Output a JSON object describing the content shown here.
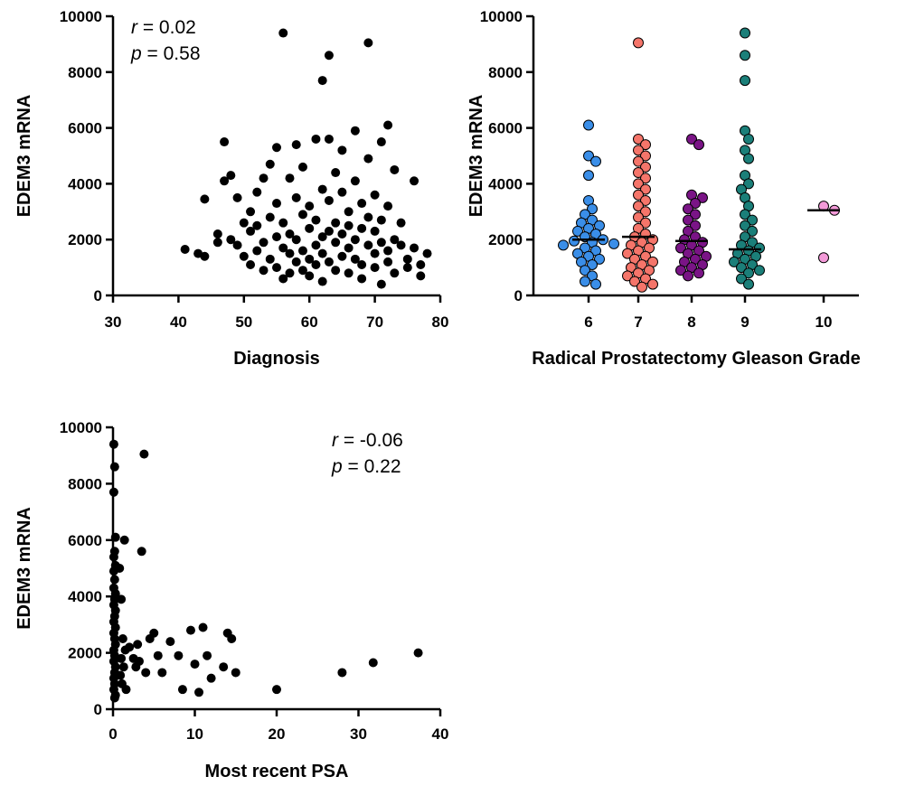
{
  "chart_data": [
    {
      "type": "scatter",
      "xlabel": "Diagnosis",
      "ylabel": "EDEM3 mRNA",
      "xlim": [
        30,
        80
      ],
      "ylim": [
        0,
        10000
      ],
      "xticks": [
        "30",
        "40",
        "50",
        "60",
        "70",
        "80"
      ],
      "yticks": [
        "0",
        "2000",
        "4000",
        "6000",
        "8000",
        "10000"
      ],
      "stats": {
        "r_symbol": "r",
        "r_text": " = 0.02",
        "p_symbol": "p",
        "p_text": " = 0.58"
      },
      "stats_position": "top-left",
      "point_color": "#000000",
      "points": [
        [
          41,
          1650
        ],
        [
          43,
          1500
        ],
        [
          44,
          1400
        ],
        [
          44,
          3450
        ],
        [
          46,
          2200
        ],
        [
          46,
          1900
        ],
        [
          47,
          5500
        ],
        [
          47,
          4100
        ],
        [
          48,
          4300
        ],
        [
          48,
          2000
        ],
        [
          49,
          1800
        ],
        [
          49,
          3500
        ],
        [
          50,
          2600
        ],
        [
          50,
          1400
        ],
        [
          51,
          2300
        ],
        [
          51,
          3000
        ],
        [
          51,
          1100
        ],
        [
          52,
          2500
        ],
        [
          52,
          1600
        ],
        [
          52,
          3700
        ],
        [
          53,
          1900
        ],
        [
          53,
          900
        ],
        [
          53,
          4200
        ],
        [
          54,
          1300
        ],
        [
          54,
          2800
        ],
        [
          54,
          4700
        ],
        [
          55,
          2100
        ],
        [
          55,
          1000
        ],
        [
          55,
          3300
        ],
        [
          55,
          5300
        ],
        [
          56,
          9400
        ],
        [
          56,
          1700
        ],
        [
          56,
          2600
        ],
        [
          56,
          600
        ],
        [
          57,
          1500
        ],
        [
          57,
          2200
        ],
        [
          57,
          4200
        ],
        [
          57,
          800
        ],
        [
          58,
          2000
        ],
        [
          58,
          1200
        ],
        [
          58,
          3500
        ],
        [
          58,
          5400
        ],
        [
          59,
          1600
        ],
        [
          59,
          2900
        ],
        [
          59,
          900
        ],
        [
          59,
          4600
        ],
        [
          60,
          2400
        ],
        [
          60,
          1300
        ],
        [
          60,
          3200
        ],
        [
          60,
          700
        ],
        [
          61,
          1800
        ],
        [
          61,
          2700
        ],
        [
          61,
          5600
        ],
        [
          61,
          1100
        ],
        [
          62,
          7700
        ],
        [
          62,
          2100
        ],
        [
          62,
          3800
        ],
        [
          62,
          500
        ],
        [
          62,
          1500
        ],
        [
          63,
          8600
        ],
        [
          63,
          2300
        ],
        [
          63,
          1200
        ],
        [
          63,
          3400
        ],
        [
          63,
          5600
        ],
        [
          64,
          1900
        ],
        [
          64,
          2600
        ],
        [
          64,
          900
        ],
        [
          64,
          4400
        ],
        [
          65,
          1400
        ],
        [
          65,
          2200
        ],
        [
          65,
          3700
        ],
        [
          65,
          5200
        ],
        [
          66,
          1700
        ],
        [
          66,
          3000
        ],
        [
          66,
          800
        ],
        [
          66,
          2500
        ],
        [
          67,
          1300
        ],
        [
          67,
          4100
        ],
        [
          67,
          2000
        ],
        [
          67,
          5900
        ],
        [
          68,
          2400
        ],
        [
          68,
          1100
        ],
        [
          68,
          3300
        ],
        [
          68,
          600
        ],
        [
          69,
          9050
        ],
        [
          69,
          1800
        ],
        [
          69,
          2800
        ],
        [
          69,
          4900
        ],
        [
          70,
          1500
        ],
        [
          70,
          2300
        ],
        [
          70,
          1000
        ],
        [
          70,
          3600
        ],
        [
          71,
          5500
        ],
        [
          71,
          1900
        ],
        [
          71,
          2700
        ],
        [
          71,
          400
        ],
        [
          72,
          6100
        ],
        [
          72,
          1600
        ],
        [
          72,
          3200
        ],
        [
          72,
          1200
        ],
        [
          73,
          4500
        ],
        [
          73,
          2000
        ],
        [
          73,
          800
        ],
        [
          74,
          1800
        ],
        [
          74,
          2600
        ],
        [
          75,
          1300
        ],
        [
          75,
          1000
        ],
        [
          76,
          4100
        ],
        [
          76,
          1700
        ],
        [
          77,
          1100
        ],
        [
          77,
          700
        ],
        [
          78,
          1500
        ]
      ]
    },
    {
      "type": "scatter",
      "subtype": "categorical-dot-plot",
      "xlabel": "Radical Prostatectomy Gleason Grade",
      "ylabel": "EDEM3 mRNA",
      "categories": [
        "6",
        "7",
        "8",
        "9",
        "10"
      ],
      "ylim": [
        0,
        10000
      ],
      "yticks": [
        "0",
        "2000",
        "4000",
        "6000",
        "8000",
        "10000"
      ],
      "series": [
        {
          "color": "#3a8ee8",
          "median": 2000,
          "values": [
            6100,
            5000,
            4800,
            4300,
            3400,
            3100,
            2900,
            2700,
            2600,
            2500,
            2400,
            2300,
            2200,
            2100,
            2000,
            1950,
            1900,
            1850,
            1800,
            1700,
            1600,
            1500,
            1400,
            1300,
            1200,
            1100,
            900,
            700,
            500,
            400
          ]
        },
        {
          "color": "#f5756a",
          "median": 2100,
          "values": [
            9050,
            5600,
            5400,
            5200,
            5000,
            4800,
            4600,
            4400,
            4200,
            4000,
            3800,
            3600,
            3400,
            3200,
            3000,
            2800,
            2600,
            2400,
            2200,
            2100,
            2000,
            1900,
            1800,
            1700,
            1600,
            1500,
            1400,
            1300,
            1200,
            1100,
            1000,
            900,
            800,
            700,
            600,
            500,
            400,
            300
          ]
        },
        {
          "color": "#7a1486",
          "median": 1950,
          "values": [
            5600,
            5400,
            3600,
            3500,
            3300,
            3100,
            2900,
            2700,
            2500,
            2300,
            2100,
            2000,
            1900,
            1800,
            1700,
            1600,
            1500,
            1400,
            1300,
            1200,
            1100,
            1000,
            900,
            800,
            700
          ]
        },
        {
          "color": "#1b7f79",
          "median": 1650,
          "values": [
            9400,
            8600,
            7700,
            5900,
            5600,
            5200,
            4900,
            4300,
            4000,
            3800,
            3500,
            3200,
            2900,
            2700,
            2500,
            2300,
            2100,
            1900,
            1800,
            1700,
            1600,
            1500,
            1400,
            1300,
            1200,
            1100,
            1000,
            900,
            800,
            600,
            400
          ]
        },
        {
          "color": "#f39ad8",
          "median": 3050,
          "values": [
            3200,
            3050,
            1350
          ]
        }
      ]
    },
    {
      "type": "scatter",
      "xlabel": "Most recent PSA",
      "ylabel": "EDEM3 mRNA",
      "xlim": [
        0,
        40
      ],
      "ylim": [
        0,
        10000
      ],
      "xticks": [
        "0",
        "10",
        "20",
        "30",
        "40"
      ],
      "yticks": [
        "0",
        "2000",
        "4000",
        "6000",
        "8000",
        "10000"
      ],
      "stats": {
        "r_symbol": "r",
        "r_text": " = -0.06",
        "p_symbol": "p",
        "p_text": " =  0.22"
      },
      "stats_position": "top-right",
      "point_color": "#000000",
      "points": [
        [
          0.1,
          9400
        ],
        [
          0.2,
          8600
        ],
        [
          0.1,
          7700
        ],
        [
          0.3,
          6100
        ],
        [
          0.2,
          5600
        ],
        [
          0.1,
          5400
        ],
        [
          0.3,
          5100
        ],
        [
          0.1,
          4900
        ],
        [
          0.2,
          4600
        ],
        [
          0.1,
          4300
        ],
        [
          0.3,
          4100
        ],
        [
          0.2,
          3900
        ],
        [
          0.1,
          3700
        ],
        [
          0.3,
          3500
        ],
        [
          0.2,
          3300
        ],
        [
          0.1,
          3100
        ],
        [
          0.3,
          2900
        ],
        [
          0.1,
          2700
        ],
        [
          0.2,
          2500
        ],
        [
          0.3,
          2300
        ],
        [
          0.1,
          2100
        ],
        [
          0.2,
          1900
        ],
        [
          0.1,
          1700
        ],
        [
          0.3,
          1500
        ],
        [
          0.2,
          1300
        ],
        [
          0.1,
          1100
        ],
        [
          0.2,
          900
        ],
        [
          0.1,
          700
        ],
        [
          0.3,
          500
        ],
        [
          0.2,
          400
        ],
        [
          0.8,
          5000
        ],
        [
          1.0,
          3900
        ],
        [
          1.2,
          2500
        ],
        [
          1.5,
          2100
        ],
        [
          1.0,
          1800
        ],
        [
          1.3,
          1500
        ],
        [
          0.9,
          1200
        ],
        [
          1.1,
          900
        ],
        [
          1.4,
          6000
        ],
        [
          1.6,
          700
        ],
        [
          2.0,
          2200
        ],
        [
          2.5,
          1800
        ],
        [
          2.8,
          1500
        ],
        [
          3.0,
          2300
        ],
        [
          3.2,
          1700
        ],
        [
          3.5,
          5600
        ],
        [
          3.8,
          9050
        ],
        [
          4.0,
          1300
        ],
        [
          4.5,
          2500
        ],
        [
          5.0,
          2700
        ],
        [
          5.5,
          1900
        ],
        [
          6.0,
          1300
        ],
        [
          7.0,
          2400
        ],
        [
          8.0,
          1900
        ],
        [
          8.5,
          700
        ],
        [
          9.5,
          2800
        ],
        [
          10.0,
          1600
        ],
        [
          10.5,
          600
        ],
        [
          11.0,
          2900
        ],
        [
          11.5,
          1900
        ],
        [
          12.0,
          1100
        ],
        [
          13.5,
          1500
        ],
        [
          14.0,
          2700
        ],
        [
          14.5,
          2500
        ],
        [
          15.0,
          1300
        ],
        [
          20.0,
          700
        ],
        [
          28.0,
          1300
        ],
        [
          31.8,
          1650
        ],
        [
          37.3,
          2000
        ]
      ]
    }
  ]
}
